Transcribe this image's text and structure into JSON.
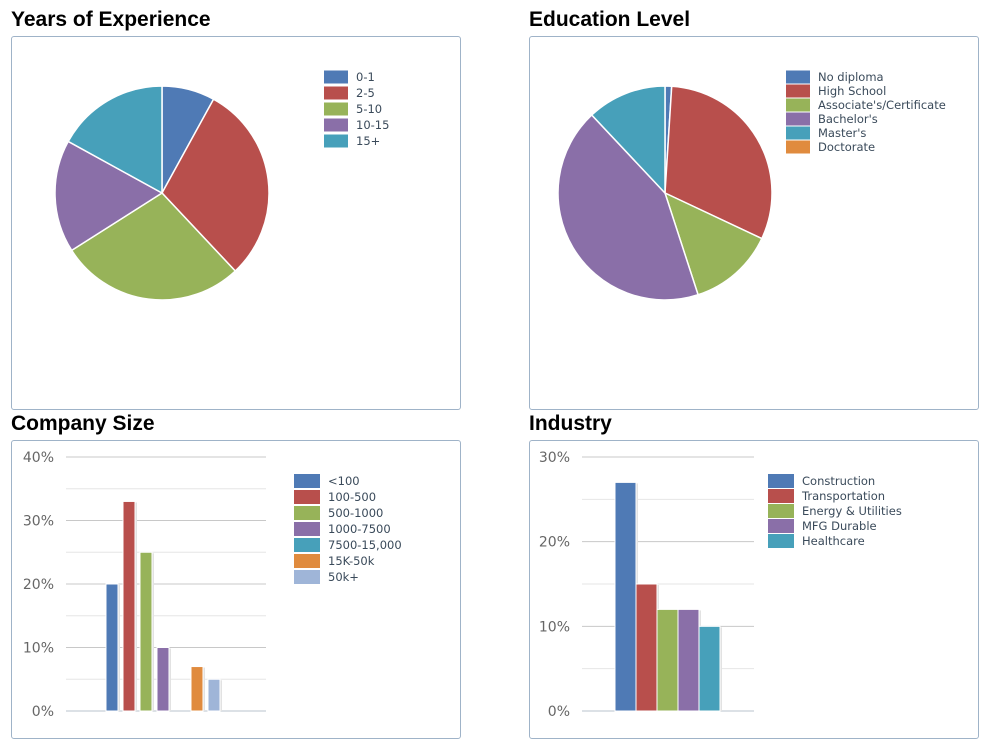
{
  "charts": [
    {
      "title": "Years of Experience",
      "type": "pie",
      "categories": [
        "0-1",
        "2-5",
        "5-10",
        "10-15",
        "15+"
      ],
      "values": [
        8,
        30,
        28,
        17,
        17
      ],
      "colors": [
        "#4f7ab5",
        "#b84f4c",
        "#97b359",
        "#8a6fa8",
        "#47a0ba"
      ]
    },
    {
      "title": "Education Level",
      "type": "pie",
      "categories": [
        "No diploma",
        "High School",
        "Associate's/Certificate",
        "Bachelor's",
        "Master's",
        "Doctorate"
      ],
      "values": [
        1,
        31,
        13,
        43,
        12,
        0
      ],
      "colors": [
        "#4f7ab5",
        "#b84f4c",
        "#97b359",
        "#8a6fa8",
        "#47a0ba",
        "#e08b3e"
      ]
    },
    {
      "title": "Company Size",
      "type": "bar",
      "categories": [
        "<100",
        "100-500",
        "500-1000",
        "1000-7500",
        "7500-15,000",
        "15K-50k",
        "50k+"
      ],
      "values": [
        20,
        33,
        25,
        10,
        0,
        7,
        5
      ],
      "colors": [
        "#4f7ab5",
        "#b84f4c",
        "#97b359",
        "#8a6fa8",
        "#47a0ba",
        "#e08b3e",
        "#9fb5d8"
      ],
      "ylim": [
        0,
        40
      ],
      "yticks": [
        "0%",
        "10%",
        "20%",
        "30%",
        "40%"
      ]
    },
    {
      "title": "Industry",
      "type": "bar",
      "categories": [
        "Construction",
        "Transportation",
        "Energy & Utilities",
        "MFG Durable",
        "Healthcare"
      ],
      "values": [
        27,
        15,
        12,
        12,
        10
      ],
      "colors": [
        "#4f7ab5",
        "#b84f4c",
        "#97b359",
        "#8a6fa8",
        "#47a0ba"
      ],
      "ylim": [
        0,
        30
      ],
      "yticks": [
        "0%",
        "10%",
        "20%",
        "30%"
      ]
    }
  ]
}
